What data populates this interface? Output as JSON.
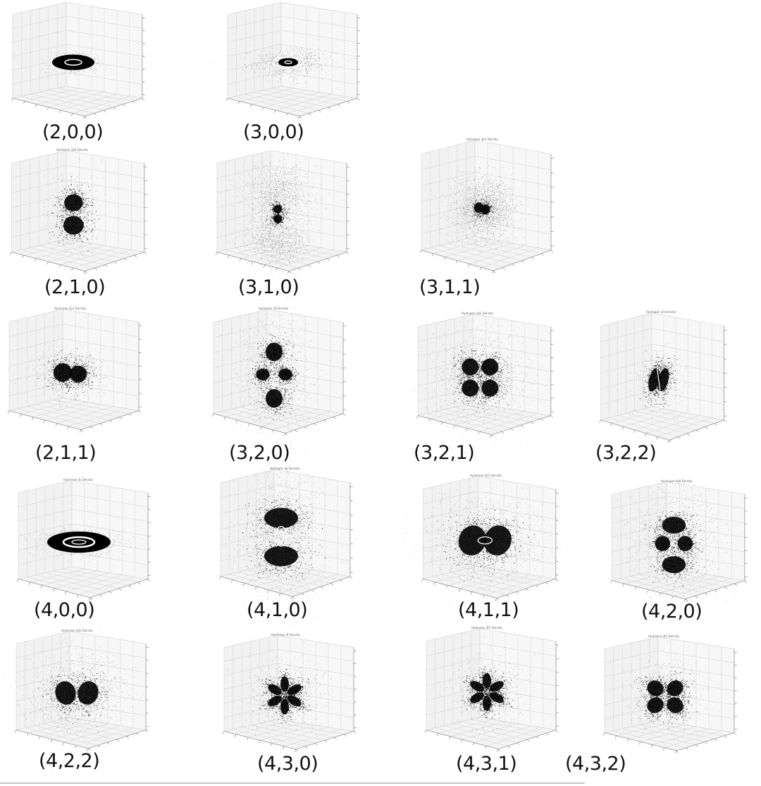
{
  "figure": {
    "colors": {
      "cloud": "#000000",
      "pane": "#f2f2f2",
      "grid": "#d2d2d2",
      "edge": "#9a9a9a"
    },
    "panels": [
      {
        "label": "(2,0,0)",
        "title": "",
        "shape": "ring"
      },
      {
        "label": "(3,0,0)",
        "title": "",
        "shape": "ring-faint"
      },
      {
        "label": "(2,1,0)",
        "title": "Hydrogen 2p0 Density",
        "shape": "p-vertical"
      },
      {
        "label": "(3,1,0)",
        "title": "",
        "shape": "p-vertical-halo"
      },
      {
        "label": "(3,1,1)",
        "title": "Hydrogen 3p1 Density",
        "shape": "p-tilted-halo"
      },
      {
        "label": "(2,1,1)",
        "title": "Hydrogen 2p1 Density",
        "shape": "p-horizontal"
      },
      {
        "label": "(3,2,0)",
        "title": "Hydrogen 3d Density",
        "shape": "d-vertical"
      },
      {
        "label": "(3,2,1)",
        "title": "Hydrogen 3d1 Density",
        "shape": "d-cloverleaf"
      },
      {
        "label": "(3,2,2)",
        "title": "Hydrogen 3d Density",
        "shape": "d-narrow"
      },
      {
        "label": "(4,0,0)",
        "title": "Hydrogen 4s Density",
        "shape": "ring-large"
      },
      {
        "label": "(4,1,0)",
        "title": "Hydrogen 4p Density",
        "shape": "p-vertical-rings"
      },
      {
        "label": "(4,1,1)",
        "title": "Hydrogen 4p1 Density",
        "shape": "p-tilted-rings"
      },
      {
        "label": "(4,2,0)",
        "title": "Hydrogen 4d0 Density",
        "shape": "d-vertical-rings"
      },
      {
        "label": "(4,2,2)",
        "title": "Hydrogen 4d2 Density",
        "shape": "d-butterfly"
      },
      {
        "label": "(4,3,0)",
        "title": "Hydrogen 4f Density",
        "shape": "f-star"
      },
      {
        "label": "(4,3,1)",
        "title": "Hydrogen 4f1 Density",
        "shape": "f-star"
      },
      {
        "label": "(4,3,2)",
        "title": "Hydrogen 4f2 Density",
        "shape": "f-quad"
      }
    ]
  }
}
